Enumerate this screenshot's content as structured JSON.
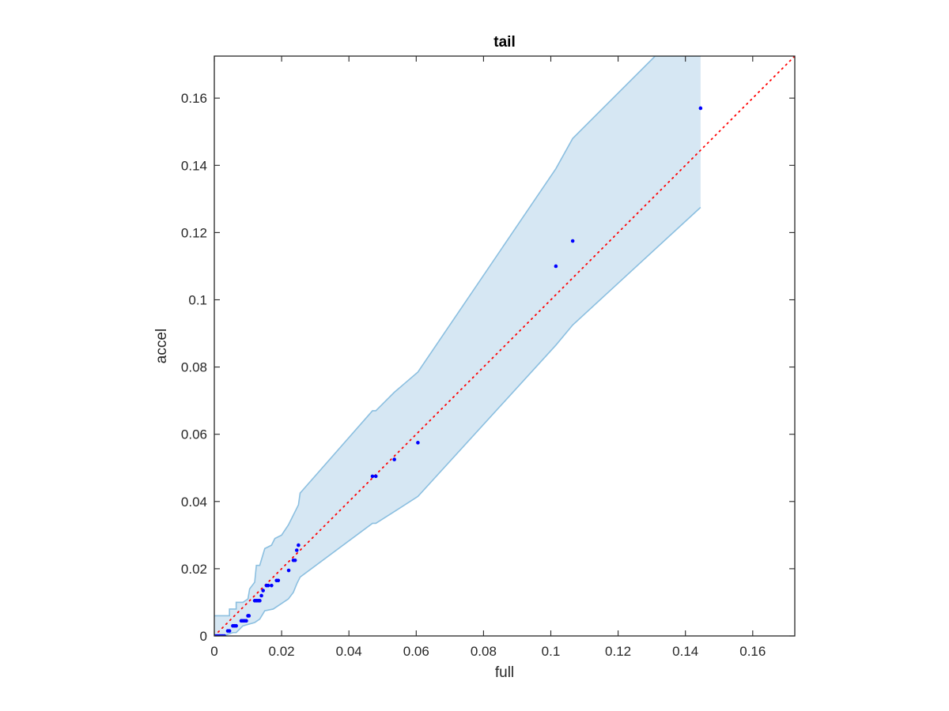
{
  "chart_data": {
    "type": "scatter",
    "title": "tail",
    "xlabel": "full",
    "ylabel": "accel",
    "xlim": [
      0,
      0.1725
    ],
    "ylim": [
      0,
      0.1725
    ],
    "xticks": [
      0,
      0.02,
      0.04,
      0.06,
      0.08,
      0.1,
      0.12,
      0.14,
      0.16
    ],
    "yticks": [
      0,
      0.02,
      0.04,
      0.06,
      0.08,
      0.1,
      0.12,
      0.14,
      0.16
    ],
    "xtick_labels": [
      "0",
      "0.02",
      "0.04",
      "0.06",
      "0.08",
      "0.1",
      "0.12",
      "0.14",
      "0.16"
    ],
    "ytick_labels": [
      "0",
      "0.02",
      "0.04",
      "0.06",
      "0.08",
      "0.1",
      "0.12",
      "0.14",
      "0.16"
    ],
    "grid": false,
    "legend": "none",
    "colors": {
      "points": "#0000ff",
      "reference_line": "#ff0000",
      "band_fill": "#d6e7f3",
      "band_edge": "#8bbfe0",
      "axes": "#262626"
    },
    "series": [
      {
        "type": "scatter",
        "x": [
          0.0,
          0.0005,
          0.001,
          0.0015,
          0.002,
          0.0025,
          0.003,
          0.004,
          0.0045,
          0.0055,
          0.006,
          0.0065,
          0.008,
          0.0085,
          0.009,
          0.0095,
          0.01,
          0.0103,
          0.012,
          0.0125,
          0.013,
          0.0135,
          0.014,
          0.0145,
          0.0155,
          0.016,
          0.017,
          0.0185,
          0.019,
          0.0221,
          0.0235,
          0.024,
          0.0245,
          0.025,
          0.047,
          0.048,
          0.0535,
          0.0605,
          0.1015,
          0.1065,
          0.1445
        ],
        "y": [
          0.0,
          0.0,
          0.0,
          0.0,
          0.0,
          0.0,
          0.0,
          0.0015,
          0.0015,
          0.003,
          0.003,
          0.003,
          0.0045,
          0.0045,
          0.0045,
          0.0045,
          0.006,
          0.006,
          0.0105,
          0.0105,
          0.0105,
          0.0105,
          0.012,
          0.0135,
          0.015,
          0.015,
          0.015,
          0.0165,
          0.0165,
          0.0195,
          0.0225,
          0.0225,
          0.0255,
          0.027,
          0.0475,
          0.0475,
          0.0525,
          0.0575,
          0.11,
          0.1175,
          0.157
        ]
      },
      {
        "type": "line",
        "style": "dotted",
        "x": [
          0,
          0.1725
        ],
        "y": [
          0,
          0.1725
        ]
      },
      {
        "type": "band",
        "upper": {
          "x": [
            0,
            0.0045,
            0.0045,
            0.0065,
            0.0065,
            0.0085,
            0.01,
            0.0105,
            0.012,
            0.0125,
            0.0135,
            0.015,
            0.017,
            0.018,
            0.02,
            0.022,
            0.0225,
            0.025,
            0.0255,
            0.047,
            0.048,
            0.0535,
            0.0605,
            0.1015,
            0.1065,
            0.131,
            0.1445
          ],
          "y": [
            0.006,
            0.006,
            0.008,
            0.008,
            0.01,
            0.01,
            0.011,
            0.014,
            0.016,
            0.021,
            0.021,
            0.026,
            0.027,
            0.029,
            0.03,
            0.033,
            0.034,
            0.039,
            0.0425,
            0.067,
            0.067,
            0.0725,
            0.0785,
            0.139,
            0.148,
            0.1725,
            0.1725
          ]
        },
        "lower": {
          "x": [
            0,
            0.003,
            0.004,
            0.0055,
            0.0065,
            0.0085,
            0.012,
            0.0135,
            0.015,
            0.0175,
            0.019,
            0.022,
            0.0235,
            0.0245,
            0.0255,
            0.047,
            0.048,
            0.0535,
            0.0605,
            0.1015,
            0.1065,
            0.1445
          ],
          "y": [
            0,
            0,
            0.0005,
            0.001,
            0.001,
            0.003,
            0.004,
            0.005,
            0.0075,
            0.008,
            0.009,
            0.011,
            0.013,
            0.0155,
            0.0175,
            0.0335,
            0.0335,
            0.037,
            0.0415,
            0.0865,
            0.0925,
            0.1275
          ]
        }
      }
    ]
  }
}
